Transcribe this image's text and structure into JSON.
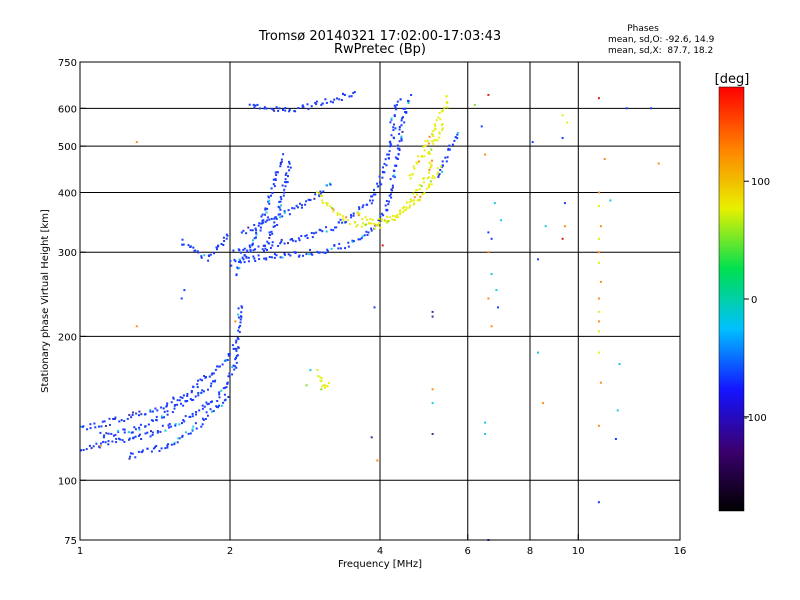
{
  "chart_data": {
    "type": "scatter",
    "title": "Tromsø 20140321 17:02:00-17:03:43",
    "subtitle": "RwPretec (Bp)",
    "stats": {
      "header": "Phases",
      "line1": "mean, sd,O: -92.6, 14.9",
      "line2": "mean, sd,X:  87.7, 18.2"
    },
    "xlabel": "Frequency [MHz]",
    "ylabel": "Stationary phase Virtual Height [km]",
    "x_scale": "log",
    "y_scale": "log",
    "xlim": [
      1,
      16
    ],
    "ylim": [
      75,
      750
    ],
    "x_ticks": [
      {
        "v": 1,
        "label": "1"
      },
      {
        "v": 2,
        "label": "2"
      },
      {
        "v": 4,
        "label": "4"
      },
      {
        "v": 6,
        "label": "6"
      },
      {
        "v": 8,
        "label": "8"
      },
      {
        "v": 10,
        "label": "10"
      },
      {
        "v": 16,
        "label": "16"
      }
    ],
    "x_grid": [
      2,
      4,
      6,
      8,
      10
    ],
    "y_ticks": [
      {
        "v": 75,
        "label": "75"
      },
      {
        "v": 100,
        "label": "100"
      },
      {
        "v": 200,
        "label": "200"
      },
      {
        "v": 300,
        "label": "300"
      },
      {
        "v": 400,
        "label": "400"
      },
      {
        "v": 500,
        "label": "500"
      },
      {
        "v": 600,
        "label": "600"
      },
      {
        "v": 750,
        "label": "750"
      }
    ],
    "y_grid": [
      100,
      200,
      300,
      400,
      500,
      600
    ],
    "grid": true,
    "colorbar": {
      "label": "[deg]",
      "range": [
        -180,
        180
      ],
      "ticks": [
        {
          "v": 100,
          "label": "100"
        },
        {
          "v": 0,
          "label": "0"
        },
        {
          "v": -100,
          "label": "-100"
        }
      ],
      "colors": [
        "#000000",
        "#3b0070",
        "#1414ff",
        "#00bfff",
        "#00e050",
        "#e8f000",
        "#ff8000",
        "#ff0000"
      ]
    },
    "point_colors": {
      "o_mode": "#1a3cff",
      "x_mode": "#e6ee10",
      "green": "#7ee030",
      "cyan": "#19c8e6",
      "orange": "#ff8c1a",
      "red": "#e01a1a",
      "purple": "#4030a0"
    },
    "series": [
      {
        "mode": "O",
        "phase": -100,
        "segments": [
          [
            1.0,
            116,
            1.15,
            120,
            1.35,
            124,
            1.55,
            131,
            1.75,
            141,
            1.95,
            153,
            2.05,
            175,
            2.08,
            205,
            2.1,
            235
          ],
          [
            1.0,
            128,
            1.2,
            134,
            1.45,
            142,
            1.65,
            152,
            1.8,
            165,
            1.95,
            178,
            2.05,
            192
          ],
          [
            1.1,
            124,
            1.3,
            128,
            1.5,
            138,
            1.7,
            150,
            1.9,
            162
          ],
          [
            1.25,
            112,
            1.5,
            118,
            1.7,
            128,
            1.85,
            140,
            2.0,
            150
          ],
          [
            2.0,
            285,
            2.3,
            292,
            2.7,
            297,
            3.1,
            302,
            3.4,
            310,
            3.7,
            322,
            3.95,
            342,
            4.1,
            368,
            4.2,
            400,
            4.3,
            460,
            4.4,
            530,
            4.5,
            600,
            4.6,
            640
          ],
          [
            2.05,
            300,
            2.4,
            310,
            2.8,
            320,
            3.2,
            338,
            3.5,
            355,
            3.8,
            380,
            4.0,
            420,
            4.15,
            480,
            4.3,
            560
          ],
          [
            2.1,
            330,
            2.4,
            350,
            2.7,
            370,
            3.0,
            395,
            3.2,
            420
          ],
          [
            2.05,
            270,
            2.2,
            310,
            2.35,
            360,
            2.45,
            420,
            2.55,
            480
          ],
          [
            2.35,
            300,
            2.5,
            360,
            2.6,
            430,
            2.65,
            470
          ],
          [
            1.6,
            315,
            1.7,
            300,
            1.8,
            292,
            1.9,
            305,
            2.0,
            330
          ],
          [
            2.2,
            605,
            2.5,
            595,
            2.8,
            600,
            3.0,
            615,
            3.3,
            630,
            3.6,
            650
          ],
          [
            4.2,
            560,
            4.3,
            600,
            4.4,
            640
          ],
          [
            5.2,
            430,
            5.4,
            470,
            5.6,
            510,
            5.8,
            540
          ]
        ]
      },
      {
        "mode": "X",
        "phase": 100,
        "segments": [
          [
            3.0,
            400,
            3.2,
            370,
            3.4,
            352,
            3.6,
            342,
            3.9,
            340,
            4.2,
            350,
            4.4,
            365,
            4.6,
            382,
            4.8,
            410,
            5.0,
            440,
            5.1,
            470
          ],
          [
            3.6,
            360,
            3.9,
            345,
            4.2,
            352,
            4.5,
            368,
            4.8,
            388,
            5.1,
            420,
            5.3,
            455
          ],
          [
            4.6,
            430,
            4.8,
            470,
            5.0,
            510,
            5.2,
            560,
            5.4,
            600,
            5.5,
            640
          ],
          [
            5.0,
            480,
            5.2,
            520,
            5.4,
            560
          ],
          [
            3.0,
            168,
            3.05,
            162,
            3.1,
            155,
            3.15,
            160
          ]
        ]
      }
    ],
    "scattered_points": [
      [
        1.3,
        510,
        "orange"
      ],
      [
        1.3,
        210,
        "orange"
      ],
      [
        1.1,
        118,
        "orange"
      ],
      [
        1.6,
        240,
        "o_mode"
      ],
      [
        1.62,
        250,
        "o_mode"
      ],
      [
        2.05,
        215,
        "orange"
      ],
      [
        2.9,
        170,
        "cyan"
      ],
      [
        2.85,
        158,
        "green"
      ],
      [
        3.05,
        155,
        "green"
      ],
      [
        3.9,
        230,
        "o_mode"
      ],
      [
        3.85,
        123,
        "purple"
      ],
      [
        3.95,
        110,
        "orange"
      ],
      [
        4.05,
        310,
        "red"
      ],
      [
        5.1,
        225,
        "purple"
      ],
      [
        5.1,
        220,
        "purple"
      ],
      [
        5.1,
        155,
        "orange"
      ],
      [
        5.1,
        145,
        "cyan"
      ],
      [
        5.1,
        125,
        "purple"
      ],
      [
        6.2,
        610,
        "green"
      ],
      [
        6.4,
        550,
        "o_mode"
      ],
      [
        6.5,
        480,
        "orange"
      ],
      [
        6.6,
        640,
        "red"
      ],
      [
        6.8,
        380,
        "cyan"
      ],
      [
        6.85,
        250,
        "cyan"
      ],
      [
        6.7,
        270,
        "cyan"
      ],
      [
        6.6,
        240,
        "orange"
      ],
      [
        6.9,
        230,
        "o_mode"
      ],
      [
        6.6,
        300,
        "orange"
      ],
      [
        6.6,
        330,
        "o_mode"
      ],
      [
        6.7,
        210,
        "orange"
      ],
      [
        6.5,
        132,
        "cyan"
      ],
      [
        6.5,
        125,
        "cyan"
      ],
      [
        6.6,
        75,
        "o_mode"
      ],
      [
        6.7,
        320,
        "o_mode"
      ],
      [
        7.0,
        350,
        "cyan"
      ],
      [
        8.1,
        510,
        "o_mode"
      ],
      [
        8.6,
        340,
        "cyan"
      ],
      [
        8.3,
        185,
        "cyan"
      ],
      [
        8.5,
        145,
        "orange"
      ],
      [
        8.3,
        290,
        "o_mode"
      ],
      [
        9.3,
        520,
        "o_mode"
      ],
      [
        9.3,
        580,
        "x_mode"
      ],
      [
        9.4,
        380,
        "o_mode"
      ],
      [
        9.4,
        340,
        "orange"
      ],
      [
        9.3,
        320,
        "red"
      ],
      [
        9.5,
        560,
        "x_mode"
      ],
      [
        11.0,
        630,
        "red"
      ],
      [
        11.0,
        400,
        "orange"
      ],
      [
        11.0,
        375,
        "x_mode"
      ],
      [
        11.1,
        340,
        "orange"
      ],
      [
        11.0,
        320,
        "x_mode"
      ],
      [
        11.0,
        300,
        "orange"
      ],
      [
        11.0,
        285,
        "x_mode"
      ],
      [
        11.1,
        260,
        "orange"
      ],
      [
        11.0,
        240,
        "orange"
      ],
      [
        11.0,
        225,
        "x_mode"
      ],
      [
        11.0,
        215,
        "orange"
      ],
      [
        11.0,
        205,
        "x_mode"
      ],
      [
        11.0,
        185,
        "x_mode"
      ],
      [
        11.1,
        160,
        "orange"
      ],
      [
        11.0,
        130,
        "orange"
      ],
      [
        11.0,
        90,
        "o_mode"
      ],
      [
        11.3,
        470,
        "orange"
      ],
      [
        11.6,
        385,
        "cyan"
      ],
      [
        12.1,
        175,
        "cyan"
      ],
      [
        12.0,
        140,
        "cyan"
      ],
      [
        11.9,
        122,
        "o_mode"
      ],
      [
        12.5,
        600,
        "o_mode"
      ],
      [
        14.0,
        600,
        "o_mode"
      ],
      [
        14.5,
        460,
        "orange"
      ]
    ]
  }
}
